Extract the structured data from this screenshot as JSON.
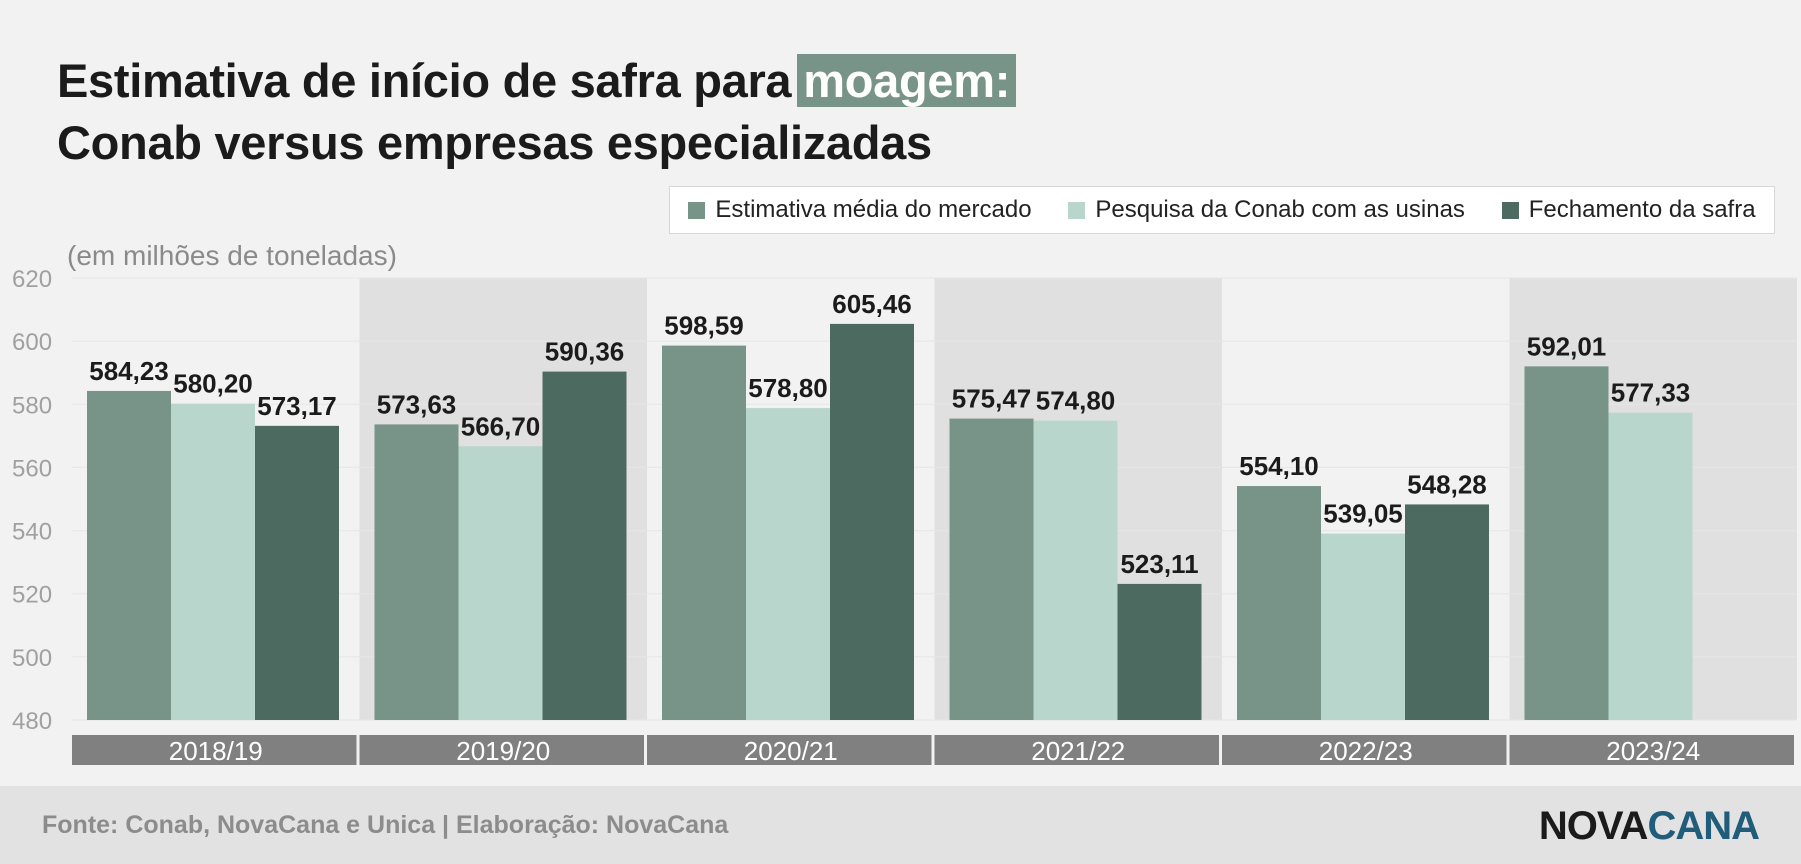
{
  "title": {
    "line1": "Estimativa de início de safra para",
    "highlight": "moagem:",
    "line2": "Conab versus empresas especializadas"
  },
  "unit_label": "(em milhões de toneladas)",
  "footer": {
    "source": "Fonte: Conab, NovaCana e Unica | Elaboração: NovaCana",
    "logo_part1": "NOVA",
    "logo_part2": "CANA"
  },
  "colors": {
    "market": "#789488",
    "conab": "#b9d6cc",
    "closing": "#4c6a5f",
    "band_dark": "#e0e0e0",
    "band_light": "#f2f2f2",
    "category_bar": "#808080"
  },
  "chart_data": {
    "type": "bar",
    "categories": [
      "2018/19",
      "2019/20",
      "2020/21",
      "2021/22",
      "2022/23",
      "2023/24"
    ],
    "series": [
      {
        "name": "Estimativa média do mercado",
        "values": [
          584.23,
          573.63,
          598.59,
          575.47,
          554.1,
          592.01
        ],
        "labels": [
          "584,23",
          "573,63",
          "598,59",
          "575,47",
          "554,10",
          "592,01"
        ]
      },
      {
        "name": "Pesquisa da Conab com as usinas",
        "values": [
          580.2,
          566.7,
          578.8,
          574.8,
          539.05,
          577.33
        ],
        "labels": [
          "580,20",
          "566,70",
          "578,80",
          "574,80",
          "539,05",
          "577,33"
        ]
      },
      {
        "name": "Fechamento da safra",
        "values": [
          573.17,
          590.36,
          605.46,
          523.11,
          548.28,
          null
        ],
        "labels": [
          "573,17",
          "590,36",
          "605,46",
          "523,11",
          "548,28",
          ""
        ]
      }
    ],
    "ylim": [
      480,
      620
    ],
    "yticks": [
      480,
      500,
      520,
      540,
      560,
      580,
      600,
      620
    ],
    "ylabel": "(em milhões de toneladas)",
    "grid": true,
    "legend": "top-right"
  }
}
